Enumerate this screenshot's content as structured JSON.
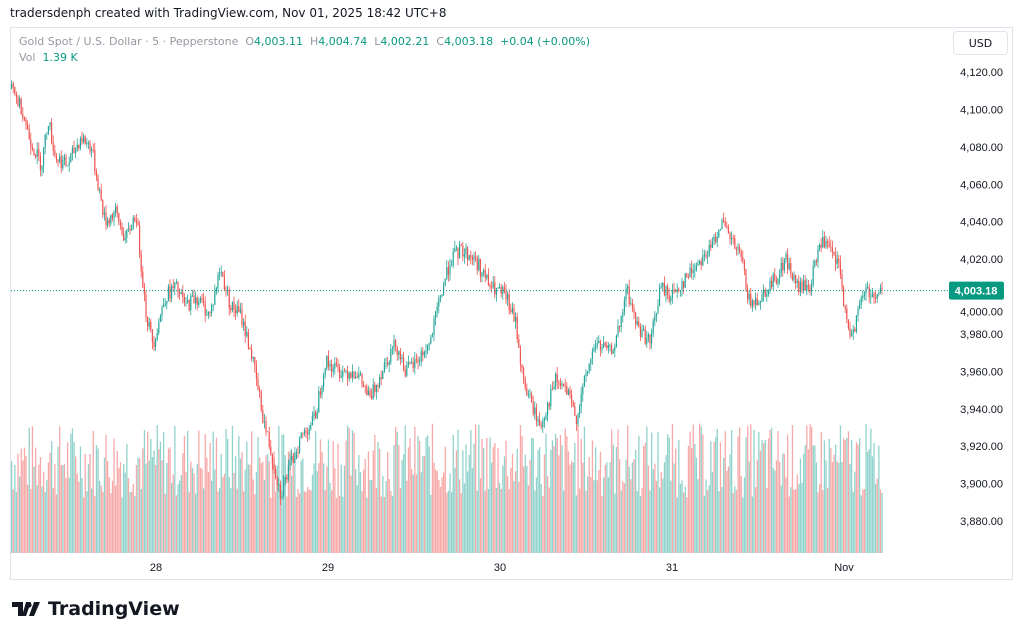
{
  "credit": "tradersdenph created with TradingView.com, Nov 01, 2025 18:42 UTC+8",
  "legend": {
    "symbol": "Gold Spot / U.S. Dollar · 5 · Pepperstone",
    "o_label": "O",
    "o": "4,003.11",
    "h_label": "H",
    "h": "4,004.74",
    "l_label": "L",
    "l": "4,002.21",
    "c_label": "C",
    "c": "4,003.18",
    "change": "+0.04 (+0.00%)",
    "vol_label": "Vol",
    "vol": "1.39 K"
  },
  "currency_button": "USD",
  "logo_text": "TradingView",
  "colors": {
    "up": "#26a69a",
    "down": "#ef5350",
    "last": "#089981"
  },
  "chart_data": {
    "type": "candlestick",
    "yticks": [
      3880,
      3900,
      3920,
      3940,
      3960,
      3980,
      4000,
      4020,
      4040,
      4060,
      4080,
      4100,
      4120
    ],
    "ytick_labels": [
      "3,880.00",
      "3,900.00",
      "3,920.00",
      "3,940.00",
      "3,960.00",
      "3,980.00",
      "4,000.00",
      "4,020.00",
      "4,040.00",
      "4,060.00",
      "4,080.00",
      "4,100.00",
      "4,120.00"
    ],
    "xticks": [
      28,
      29,
      30,
      31,
      32
    ],
    "xtick_labels": [
      "28",
      "29",
      "30",
      "31",
      "Nov"
    ],
    "xlim": [
      27.09,
      32.9
    ],
    "ylim": [
      3872,
      4127
    ],
    "last_price": 4003.18,
    "last_price_label": "4,003.18",
    "price_path": [
      [
        27.15,
        4112
      ],
      [
        27.22,
        4100
      ],
      [
        27.26,
        4085
      ],
      [
        27.33,
        4070
      ],
      [
        27.37,
        4095
      ],
      [
        27.41,
        4075
      ],
      [
        27.48,
        4070
      ],
      [
        27.56,
        4085
      ],
      [
        27.62,
        4080
      ],
      [
        27.7,
        4040
      ],
      [
        27.76,
        4045
      ],
      [
        27.82,
        4030
      ],
      [
        27.88,
        4045
      ],
      [
        27.94,
        3990
      ],
      [
        27.98,
        3975
      ],
      [
        28.05,
        4000
      ],
      [
        28.11,
        4005
      ],
      [
        28.17,
        3995
      ],
      [
        28.23,
        4000
      ],
      [
        28.31,
        3990
      ],
      [
        28.37,
        4015
      ],
      [
        28.43,
        3995
      ],
      [
        28.49,
        3990
      ],
      [
        28.55,
        3970
      ],
      [
        28.62,
        3935
      ],
      [
        28.67,
        3915
      ],
      [
        28.72,
        3895
      ],
      [
        28.78,
        3910
      ],
      [
        28.84,
        3925
      ],
      [
        28.92,
        3935
      ],
      [
        28.98,
        3965
      ],
      [
        29.07,
        3960
      ],
      [
        29.16,
        3960
      ],
      [
        29.24,
        3945
      ],
      [
        29.33,
        3965
      ],
      [
        29.39,
        3975
      ],
      [
        29.45,
        3960
      ],
      [
        29.51,
        3965
      ],
      [
        29.59,
        3975
      ],
      [
        29.65,
        4000
      ],
      [
        29.71,
        4020
      ],
      [
        29.77,
        4025
      ],
      [
        29.85,
        4020
      ],
      [
        29.94,
        4005
      ],
      [
        30.03,
        4000
      ],
      [
        30.09,
        3985
      ],
      [
        30.13,
        3955
      ],
      [
        30.17,
        3945
      ],
      [
        30.23,
        3930
      ],
      [
        30.32,
        3955
      ],
      [
        30.38,
        3950
      ],
      [
        30.44,
        3935
      ],
      [
        30.49,
        3955
      ],
      [
        30.55,
        3975
      ],
      [
        30.64,
        3970
      ],
      [
        30.7,
        3985
      ],
      [
        30.73,
        4005
      ],
      [
        30.79,
        3985
      ],
      [
        30.87,
        3975
      ],
      [
        30.93,
        4005
      ],
      [
        30.99,
        4000
      ],
      [
        31.08,
        4010
      ],
      [
        31.16,
        4020
      ],
      [
        31.22,
        4025
      ],
      [
        31.28,
        4040
      ],
      [
        31.34,
        4030
      ],
      [
        31.4,
        4020
      ],
      [
        31.45,
        3995
      ],
      [
        31.51,
        4000
      ],
      [
        31.6,
        4010
      ],
      [
        31.66,
        4020
      ],
      [
        31.72,
        4005
      ],
      [
        31.8,
        4005
      ],
      [
        31.86,
        4030
      ],
      [
        31.91,
        4025
      ],
      [
        31.97,
        4015
      ],
      [
        32.02,
        3980
      ],
      [
        32.06,
        3985
      ],
      [
        32.12,
        4005
      ],
      [
        32.17,
        4000
      ],
      [
        32.21,
        4003.18
      ]
    ]
  }
}
